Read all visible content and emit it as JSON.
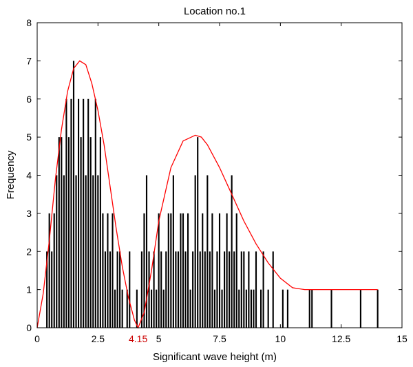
{
  "chart_data": {
    "type": "bar",
    "title": "Location no.1",
    "xlabel": "Significant wave height (m)",
    "ylabel": "Frequency",
    "xlim": [
      0,
      15
    ],
    "ylim": [
      0,
      8
    ],
    "xticks": [
      0,
      2.5,
      5,
      7.5,
      10,
      12.5,
      15
    ],
    "xtick_labels": [
      "0",
      "2.5",
      "5",
      "7.5",
      "10",
      "12.5",
      "15"
    ],
    "yticks": [
      0,
      1,
      2,
      3,
      4,
      5,
      6,
      7,
      8
    ],
    "ytick_labels": [
      "0",
      "1",
      "2",
      "3",
      "4",
      "5",
      "6",
      "7",
      "8"
    ],
    "grid": false,
    "bar_color": "#000000",
    "curve_color": "#ff0000",
    "annotation": {
      "text": "4.15",
      "x": 4.15,
      "color": "#cc0000"
    },
    "series": [
      {
        "type": "bar",
        "x": [
          0.4,
          0.5,
          0.6,
          0.7,
          0.8,
          0.9,
          1.0,
          1.1,
          1.2,
          1.3,
          1.4,
          1.5,
          1.6,
          1.7,
          1.8,
          1.9,
          2.0,
          2.1,
          2.2,
          2.3,
          2.4,
          2.5,
          2.6,
          2.7,
          2.8,
          2.9,
          3.0,
          3.1,
          3.2,
          3.3,
          3.4,
          3.5,
          3.7,
          3.8,
          4.1,
          4.3,
          4.4,
          4.5,
          4.6,
          4.7,
          4.8,
          4.9,
          5.0,
          5.1,
          5.2,
          5.3,
          5.4,
          5.5,
          5.6,
          5.7,
          5.8,
          5.9,
          6.0,
          6.1,
          6.2,
          6.3,
          6.4,
          6.5,
          6.6,
          6.7,
          6.8,
          6.9,
          7.0,
          7.1,
          7.2,
          7.3,
          7.4,
          7.5,
          7.6,
          7.7,
          7.8,
          7.9,
          8.0,
          8.1,
          8.2,
          8.3,
          8.4,
          8.5,
          8.6,
          8.7,
          8.8,
          8.9,
          9.0,
          9.2,
          9.3,
          9.5,
          9.7,
          10.1,
          10.3,
          11.2,
          11.3,
          12.1,
          13.3,
          14.0
        ],
        "values": [
          2,
          3,
          2,
          3,
          4,
          5,
          5,
          4,
          6,
          5,
          6,
          7,
          4,
          6,
          5,
          6,
          4,
          6,
          5,
          4,
          6,
          4,
          5,
          3,
          2,
          3,
          2,
          3,
          1,
          2,
          2,
          1,
          1,
          2,
          1,
          2,
          3,
          4,
          2,
          1,
          2,
          1,
          3,
          2,
          1,
          2,
          3,
          3,
          4,
          2,
          2,
          3,
          3,
          2,
          3,
          1,
          2,
          4,
          5,
          2,
          3,
          2,
          4,
          2,
          3,
          1,
          2,
          3,
          1,
          2,
          3,
          2,
          4,
          2,
          3,
          1,
          2,
          2,
          1,
          2,
          1,
          1,
          2,
          1,
          2,
          1,
          2,
          1,
          1,
          1,
          1,
          1,
          1,
          1
        ]
      },
      {
        "type": "line",
        "x": [
          0,
          0.25,
          0.5,
          0.75,
          1.0,
          1.25,
          1.5,
          1.75,
          2.0,
          2.25,
          2.5,
          2.75,
          3.0,
          3.25,
          3.5,
          3.75,
          4.0,
          4.15,
          4.4,
          4.7,
          5.0,
          5.5,
          6.0,
          6.5,
          6.75,
          7.0,
          7.5,
          8.0,
          8.5,
          9.0,
          9.5,
          10.0,
          10.5,
          11.0,
          11.5,
          12.0,
          13.0,
          14.0
        ],
        "values": [
          0,
          0.9,
          2.3,
          3.9,
          5.2,
          6.2,
          6.8,
          7.0,
          6.9,
          6.4,
          5.7,
          4.8,
          3.7,
          2.6,
          1.6,
          0.8,
          0.2,
          0,
          0.4,
          1.5,
          2.8,
          4.2,
          4.9,
          5.05,
          5.0,
          4.8,
          4.2,
          3.5,
          2.8,
          2.2,
          1.7,
          1.3,
          1.05,
          1.0,
          1.0,
          1.0,
          1.0,
          1.0
        ]
      }
    ]
  }
}
